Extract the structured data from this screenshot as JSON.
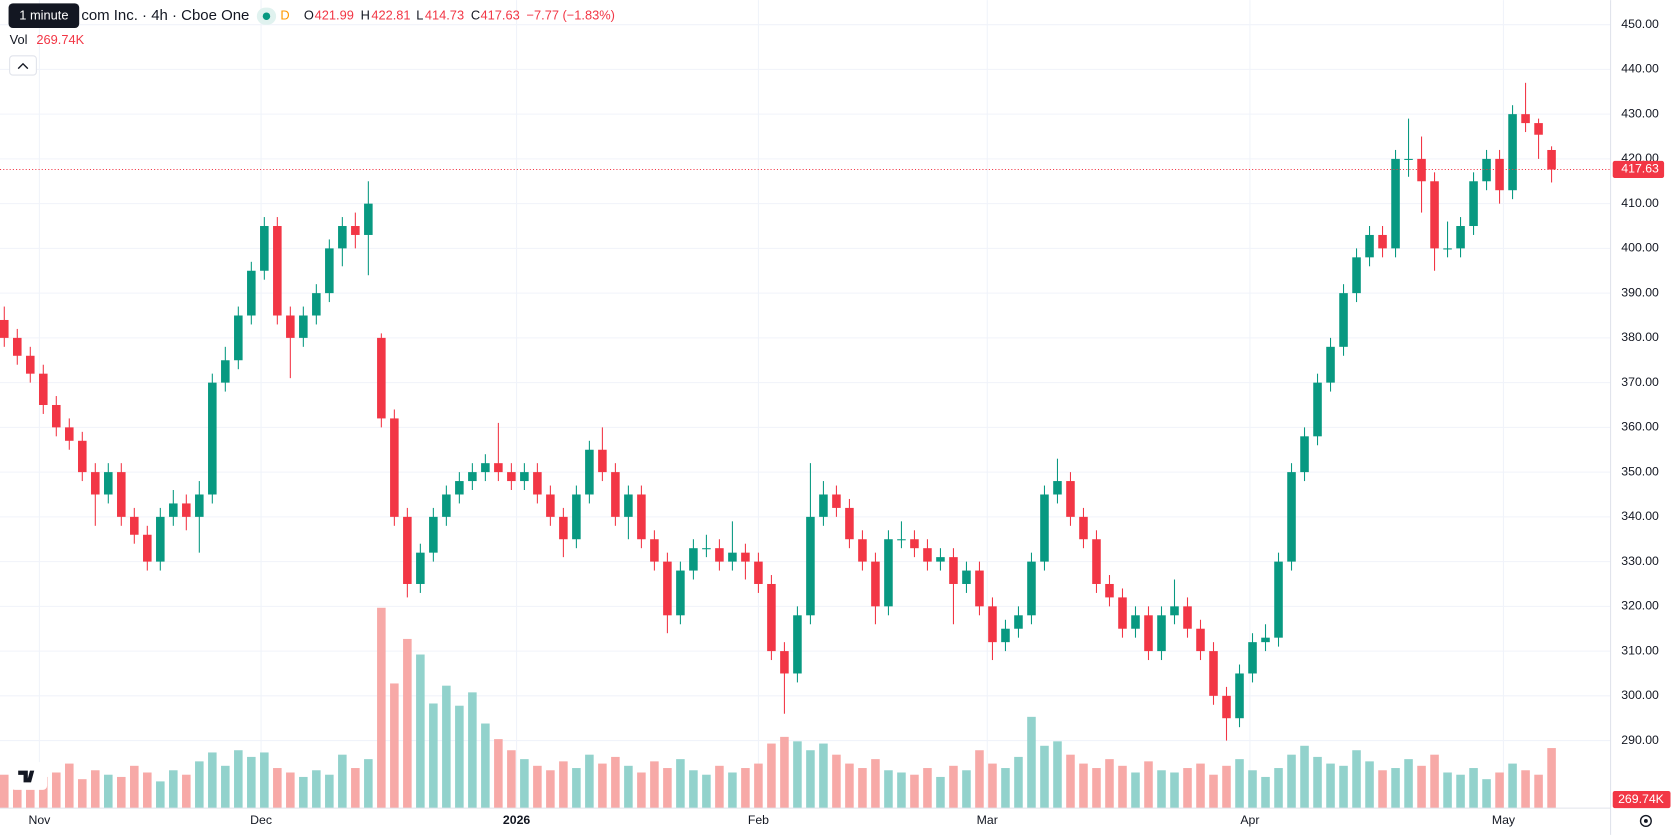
{
  "chart_data": {
    "type": "candlestick",
    "interval_tooltip": "1 minute",
    "title": "com Inc. · 4h · Cboe One",
    "badge": "D",
    "legend": {
      "o": "O",
      "h": "H",
      "l": "L",
      "c": "C",
      "change": "−7.77 (−1.83%)",
      "vol": "Vol",
      "vol_value": "269.74K"
    },
    "up_color": "#089981",
    "down_color": "#f23645",
    "up_volume_color": "#92d2cc",
    "down_volume_color": "#f7a9a7",
    "ylim": [
      284,
      455
    ],
    "yticks": [
      {
        "value": 290,
        "label": "290.00"
      },
      {
        "value": 300,
        "label": "300.00"
      },
      {
        "value": 310,
        "label": "310.00"
      },
      {
        "value": 320,
        "label": "320.00"
      },
      {
        "value": 330,
        "label": "330.00"
      },
      {
        "value": 340,
        "label": "340.00"
      },
      {
        "value": 350,
        "label": "350.00"
      },
      {
        "value": 360,
        "label": "360.00"
      },
      {
        "value": 370,
        "label": "370.00"
      },
      {
        "value": 380,
        "label": "380.00"
      },
      {
        "value": 390,
        "label": "390.00"
      },
      {
        "value": 400,
        "label": "400.00"
      },
      {
        "value": 410,
        "label": "410.00"
      },
      {
        "value": 420,
        "label": "420.00"
      },
      {
        "value": 430,
        "label": "430.00"
      },
      {
        "value": 440,
        "label": "440.00"
      },
      {
        "value": 450,
        "label": "450.00"
      }
    ],
    "xticks": [
      {
        "value": 2.7,
        "label": "Nov"
      },
      {
        "value": 19.75,
        "label": "Dec"
      },
      {
        "value": 39.4,
        "label": "2026"
      },
      {
        "value": 58,
        "label": "Feb"
      },
      {
        "value": 75.6,
        "label": "Mar"
      },
      {
        "value": 95.8,
        "label": "Apr"
      },
      {
        "value": 115.3,
        "label": "May"
      }
    ],
    "grid": true,
    "ohlc": [
      [
        384,
        387,
        378,
        380
      ],
      [
        380,
        382,
        374,
        376
      ],
      [
        376,
        378,
        370,
        372
      ],
      [
        372,
        374,
        363,
        365
      ],
      [
        365,
        367,
        358,
        360
      ],
      [
        360,
        362,
        355,
        357
      ],
      [
        357,
        359,
        348,
        350
      ],
      [
        350,
        352,
        338,
        345
      ],
      [
        345,
        352,
        343,
        350
      ],
      [
        350,
        352,
        338,
        340
      ],
      [
        340,
        342,
        334,
        336
      ],
      [
        336,
        338,
        328,
        330
      ],
      [
        330,
        342,
        328,
        340
      ],
      [
        340,
        346,
        338,
        343
      ],
      [
        343,
        345,
        337,
        340
      ],
      [
        340,
        348,
        332,
        345
      ],
      [
        345,
        372,
        343,
        370
      ],
      [
        370,
        378,
        368,
        375
      ],
      [
        375,
        387,
        373,
        385
      ],
      [
        385,
        397,
        383,
        395
      ],
      [
        395,
        407,
        393,
        405
      ],
      [
        405,
        407,
        383,
        385
      ],
      [
        385,
        387,
        371,
        380
      ],
      [
        380,
        387,
        378,
        385
      ],
      [
        385,
        392,
        383,
        390
      ],
      [
        390,
        402,
        388,
        400
      ],
      [
        400,
        407,
        396,
        405
      ],
      [
        405,
        408,
        400,
        403
      ],
      [
        403,
        415,
        394,
        410
      ],
      [
        380,
        381,
        360,
        362
      ],
      [
        362,
        364,
        338,
        340
      ],
      [
        340,
        342,
        322,
        325
      ],
      [
        325,
        334,
        323,
        332
      ],
      [
        332,
        342,
        330,
        340
      ],
      [
        340,
        347,
        338,
        345
      ],
      [
        345,
        350,
        343,
        348
      ],
      [
        348,
        352,
        346,
        350
      ],
      [
        350,
        354,
        348,
        352
      ],
      [
        352,
        361,
        348,
        350
      ],
      [
        350,
        352,
        346,
        348
      ],
      [
        348,
        352,
        346,
        350
      ],
      [
        350,
        352,
        343,
        345
      ],
      [
        345,
        347,
        338,
        340
      ],
      [
        340,
        342,
        331,
        335
      ],
      [
        335,
        347,
        333,
        345
      ],
      [
        345,
        357,
        343,
        355
      ],
      [
        355,
        360,
        348,
        350
      ],
      [
        350,
        352,
        338,
        340
      ],
      [
        340,
        347,
        335,
        345
      ],
      [
        345,
        347,
        333,
        335
      ],
      [
        335,
        337,
        328,
        330
      ],
      [
        330,
        332,
        314,
        318
      ],
      [
        318,
        330,
        316,
        328
      ],
      [
        328,
        335,
        326,
        333
      ],
      [
        333,
        336,
        331,
        333
      ],
      [
        333,
        335,
        328,
        330
      ],
      [
        330,
        339,
        328,
        332
      ],
      [
        332,
        334,
        326,
        330
      ],
      [
        330,
        332,
        323,
        325
      ],
      [
        325,
        327,
        308,
        310
      ],
      [
        310,
        312,
        296,
        305
      ],
      [
        305,
        320,
        303,
        318
      ],
      [
        318,
        352,
        316,
        340
      ],
      [
        340,
        348,
        338,
        345
      ],
      [
        345,
        347,
        340,
        342
      ],
      [
        342,
        344,
        333,
        335
      ],
      [
        335,
        337,
        328,
        330
      ],
      [
        330,
        332,
        316,
        320
      ],
      [
        320,
        337,
        318,
        335
      ],
      [
        335,
        339,
        333,
        335
      ],
      [
        335,
        337,
        331,
        333
      ],
      [
        333,
        335,
        328,
        330
      ],
      [
        330,
        333,
        328,
        331
      ],
      [
        331,
        333,
        316,
        325
      ],
      [
        325,
        330,
        323,
        328
      ],
      [
        328,
        330,
        318,
        320
      ],
      [
        320,
        322,
        308,
        312
      ],
      [
        312,
        317,
        310,
        315
      ],
      [
        315,
        320,
        313,
        318
      ],
      [
        318,
        332,
        316,
        330
      ],
      [
        330,
        347,
        328,
        345
      ],
      [
        345,
        353,
        343,
        348
      ],
      [
        348,
        350,
        338,
        340
      ],
      [
        340,
        342,
        333,
        335
      ],
      [
        335,
        337,
        323,
        325
      ],
      [
        325,
        327,
        320,
        322
      ],
      [
        322,
        324,
        313,
        315
      ],
      [
        315,
        320,
        313,
        318
      ],
      [
        318,
        320,
        308,
        310
      ],
      [
        310,
        320,
        308,
        318
      ],
      [
        318,
        326,
        316,
        320
      ],
      [
        320,
        322,
        313,
        315
      ],
      [
        315,
        317,
        308,
        310
      ],
      [
        310,
        312,
        298,
        300
      ],
      [
        300,
        302,
        290,
        295
      ],
      [
        295,
        307,
        293,
        305
      ],
      [
        305,
        314,
        303,
        312
      ],
      [
        312,
        316,
        310,
        313
      ],
      [
        313,
        332,
        311,
        330
      ],
      [
        330,
        352,
        328,
        350
      ],
      [
        350,
        360,
        348,
        358
      ],
      [
        358,
        372,
        356,
        370
      ],
      [
        370,
        380,
        368,
        378
      ],
      [
        378,
        392,
        376,
        390
      ],
      [
        390,
        400,
        388,
        398
      ],
      [
        398,
        405,
        396,
        403
      ],
      [
        403,
        405,
        398,
        400
      ],
      [
        400,
        422,
        398,
        420
      ],
      [
        420,
        429,
        416,
        420
      ],
      [
        420,
        425,
        408,
        415
      ],
      [
        415,
        417,
        395,
        400
      ],
      [
        400,
        406,
        398,
        400
      ],
      [
        400,
        407,
        398,
        405
      ],
      [
        405,
        417,
        403,
        415
      ],
      [
        415,
        422,
        413,
        420
      ],
      [
        420,
        422,
        410,
        413
      ],
      [
        413,
        432,
        411,
        430
      ],
      [
        430,
        437,
        426,
        428
      ],
      [
        428,
        429,
        420,
        425.4
      ],
      [
        421.99,
        422.81,
        414.73,
        417.63
      ]
    ],
    "volume": [
      150000,
      120000,
      180000,
      140000,
      160000,
      200000,
      130000,
      170000,
      150000,
      140000,
      190000,
      160000,
      120000,
      170000,
      150000,
      210000,
      250000,
      190000,
      260000,
      230000,
      250000,
      180000,
      160000,
      140000,
      170000,
      150000,
      240000,
      180000,
      220000,
      900000,
      560000,
      760000,
      690000,
      470000,
      550000,
      460000,
      520000,
      380000,
      310000,
      260000,
      220000,
      190000,
      170000,
      210000,
      180000,
      240000,
      200000,
      230000,
      190000,
      160000,
      210000,
      180000,
      220000,
      170000,
      150000,
      190000,
      160000,
      180000,
      200000,
      290000,
      320000,
      300000,
      260000,
      290000,
      240000,
      200000,
      180000,
      220000,
      170000,
      160000,
      150000,
      180000,
      140000,
      190000,
      170000,
      260000,
      200000,
      180000,
      230000,
      410000,
      280000,
      300000,
      240000,
      200000,
      180000,
      220000,
      190000,
      160000,
      210000,
      170000,
      160000,
      180000,
      200000,
      150000,
      190000,
      220000,
      170000,
      140000,
      180000,
      240000,
      280000,
      230000,
      200000,
      190000,
      260000,
      210000,
      170000,
      180000,
      220000,
      190000,
      240000,
      160000,
      150000,
      180000,
      130000,
      160000,
      200000,
      170000,
      150000,
      269740
    ]
  }
}
